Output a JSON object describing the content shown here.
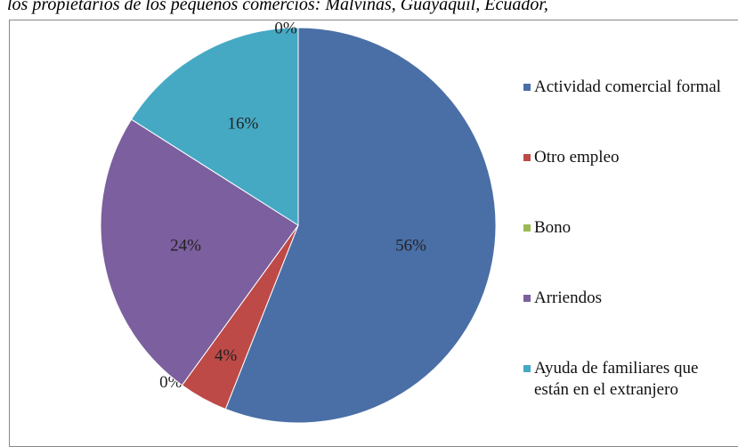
{
  "chart_data": {
    "type": "pie",
    "title": "los propietarios de los pequeños comercios: Malvinas, Guayaquil, Ecuador,",
    "categories": [
      "Actividad comercial formal",
      "Otro empleo",
      "Bono",
      "Arriendos",
      "Ayuda de familiares que están en el extranjero",
      null
    ],
    "values": [
      56,
      4,
      0,
      24,
      16,
      0
    ],
    "value_labels": [
      "56%",
      "4%",
      "0%",
      "24%",
      "16%",
      "0%"
    ],
    "colors": [
      "#4a6fa6",
      "#bd4a47",
      "#99ba55",
      "#7c5f9e",
      "#45a9c4",
      "#f79646"
    ],
    "legend": "right"
  }
}
